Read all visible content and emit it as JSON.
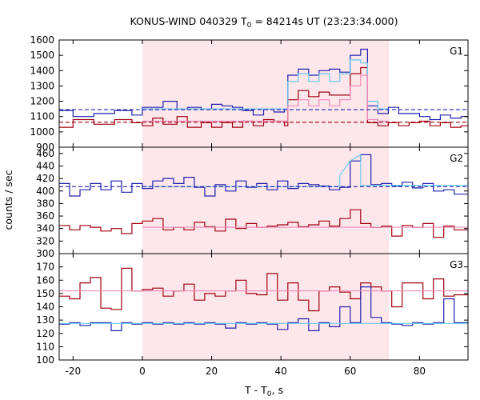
{
  "chart_data": {
    "type": "line",
    "title": "KONUS-WIND 040329 T",
    "title_sub": "0",
    "title_rest": " = 84214s UT (23:23:34.000)",
    "xlabel": "T - T",
    "xlabel_sub": "0",
    "xlabel_rest": ", s",
    "ylabel": "counts / sec",
    "xlim": [
      -24,
      94
    ],
    "x_ticks": [
      -20,
      0,
      20,
      40,
      60,
      80
    ],
    "x_tick_labels": [
      "-20",
      "0",
      "20",
      "40",
      "60",
      "80"
    ],
    "highlight_interval": [
      0,
      71.2
    ],
    "colors": {
      "highlight": "#fde7ea",
      "red_hist": "#a00010",
      "blue_hist": "#2020b0",
      "light_blue": "#66c8ee",
      "pink": "#f08ab8"
    },
    "panels": [
      {
        "name": "G1",
        "ylim": [
          900,
          1600
        ],
        "y_ticks": [
          900,
          1000,
          1100,
          1200,
          1300,
          1400,
          1500,
          1600
        ],
        "y_tick_labels": [
          "900",
          "1000",
          "1100",
          "1200",
          "1300",
          "1400",
          "1500",
          "1600"
        ],
        "bin_edges": [
          -24,
          -20,
          -14,
          -8,
          -3,
          0,
          3,
          6,
          10,
          13,
          17,
          20,
          23,
          26,
          29,
          32,
          35,
          38,
          41,
          42,
          45,
          48,
          51,
          54,
          57,
          60,
          63,
          65,
          68,
          71,
          74,
          77,
          80,
          83,
          86,
          89,
          92,
          94
        ],
        "series": [
          {
            "color": "blue_hist",
            "style": "hist",
            "values": [
              1140,
              1100,
              1120,
              1140,
              1110,
              1160,
              1160,
              1200,
              1150,
              1160,
              1150,
              1180,
              1170,
              1160,
              1140,
              1110,
              1150,
              1130,
              1150,
              1370,
              1410,
              1370,
              1400,
              1410,
              1390,
              1500,
              1540,
              1170,
              1120,
              1160,
              1120,
              1120,
              1100,
              1080,
              1110,
              1090,
              1100
            ]
          },
          {
            "color": "red_hist",
            "style": "hist",
            "values": [
              1030,
              1080,
              1050,
              1080,
              1060,
              1040,
              1090,
              1050,
              1100,
              1030,
              1060,
              1030,
              1060,
              1030,
              1070,
              1040,
              1080,
              1070,
              1040,
              1210,
              1270,
              1230,
              1260,
              1240,
              1240,
              1380,
              1420,
              1060,
              1040,
              1060,
              1040,
              1060,
              1070,
              1040,
              1060,
              1030,
              1040
            ]
          },
          {
            "color": "light_blue",
            "style": "hist",
            "values": [
              null,
              null,
              null,
              null,
              null,
              1150,
              1150,
              1150,
              1150,
              1150,
              1150,
              1150,
              1150,
              1150,
              1150,
              1150,
              1150,
              1150,
              1150,
              1330,
              1380,
              1330,
              1380,
              1330,
              1380,
              1470,
              1450,
              1200,
              1150,
              null,
              null,
              null,
              null,
              null,
              null,
              null,
              null
            ]
          },
          {
            "color": "pink",
            "style": "hist",
            "values": [
              null,
              null,
              null,
              null,
              null,
              1070,
              1070,
              1070,
              1070,
              1070,
              1070,
              1070,
              1070,
              1070,
              1070,
              1070,
              1070,
              1070,
              1070,
              1170,
              1210,
              1170,
              1210,
              1170,
              1210,
              1300,
              1370,
              1080,
              1070,
              null,
              null,
              null,
              null,
              null,
              null,
              null,
              null
            ]
          }
        ],
        "baselines": [
          {
            "color": "blue_hist",
            "value": 1145,
            "style": "dashed"
          },
          {
            "color": "red_hist",
            "value": 1063,
            "style": "dashed"
          }
        ]
      },
      {
        "name": "G2",
        "ylim": [
          300,
          470
        ],
        "y_ticks": [
          300,
          320,
          340,
          360,
          380,
          400,
          420,
          440,
          460
        ],
        "y_tick_labels": [
          "300",
          "320",
          "340",
          "360",
          "380",
          "400",
          "420",
          "440",
          "460"
        ],
        "bin_edges": [
          -24,
          -21,
          -18,
          -15,
          -12,
          -9,
          -6,
          -3,
          0,
          3,
          6,
          9,
          12,
          15,
          18,
          21,
          24,
          27,
          30,
          33,
          36,
          39,
          42,
          45,
          48,
          51,
          54,
          57,
          60,
          63,
          66,
          69,
          72,
          75,
          78,
          81,
          84,
          87,
          90,
          94
        ],
        "series": [
          {
            "color": "blue_hist",
            "style": "hist",
            "values": [
              412,
              392,
              402,
              412,
              402,
              416,
              398,
              412,
              404,
              416,
              420,
              412,
              422,
              406,
              392,
              410,
              400,
              416,
              406,
              412,
              402,
              416,
              404,
              412,
              410,
              408,
              402,
              406,
              448,
              458,
              410,
              412,
              408,
              414,
              405,
              412,
              400,
              402,
              395
            ]
          },
          {
            "color": "red_hist",
            "style": "hist",
            "values": [
              345,
              338,
              345,
              342,
              336,
              340,
              332,
              348,
              352,
              356,
              338,
              342,
              338,
              350,
              343,
              336,
              355,
              340,
              348,
              342,
              344,
              346,
              350,
              343,
              346,
              352,
              344,
              356,
              370,
              348,
              342,
              344,
              328,
              345,
              342,
              348,
              326,
              344,
              338
            ]
          }
        ],
        "lines": [
          {
            "color": "light_blue",
            "points": [
              [
                0,
                407
              ],
              [
                57,
                407
              ],
              [
                57,
                425
              ],
              [
                60,
                448
              ],
              [
                63,
                458
              ],
              [
                63,
                409
              ],
              [
                94,
                409
              ]
            ]
          },
          {
            "color": "pink",
            "points": [
              [
                0,
                342
              ],
              [
                94,
                342
              ]
            ]
          }
        ],
        "baselines": [
          {
            "color": "blue_hist",
            "value": 407,
            "style": "dashed"
          }
        ]
      },
      {
        "name": "G3",
        "ylim": [
          100,
          180
        ],
        "y_ticks": [
          100,
          110,
          120,
          130,
          140,
          150,
          160,
          170
        ],
        "y_tick_labels": [
          "100",
          "110",
          "120",
          "130",
          "140",
          "150",
          "160",
          "170"
        ],
        "bin_edges": [
          -24,
          -21,
          -18,
          -15,
          -12,
          -9,
          -6,
          -3,
          0,
          3,
          6,
          9,
          12,
          15,
          18,
          21,
          24,
          27,
          30,
          33,
          36,
          39,
          42,
          45,
          48,
          51,
          54,
          57,
          60,
          63,
          66,
          69,
          72,
          75,
          78,
          81,
          84,
          87,
          90,
          94
        ],
        "series": [
          {
            "color": "red_hist",
            "style": "hist",
            "values": [
              148,
              146,
              158,
              162,
              139,
              138,
              169,
              152,
              153,
              154,
              148,
              152,
              157,
              145,
              150,
              148,
              152,
              160,
              150,
              149,
              165,
              145,
              158,
              145,
              137,
              152,
              155,
              151,
              146,
              158,
              155,
              152,
              140,
              158,
              158,
              146,
              161,
              148,
              149
            ]
          },
          {
            "color": "blue_hist",
            "style": "hist",
            "values": [
              127,
              128,
              126,
              128,
              128,
              122,
              128,
              127,
              128,
              127,
              128,
              127,
              128,
              127,
              128,
              127,
              124,
              128,
              127,
              128,
              127,
              123,
              128,
              131,
              122,
              128,
              125,
              140,
              128,
              155,
              132,
              128,
              127,
              126,
              128,
              127,
              128,
              146,
              128
            ]
          }
        ],
        "lines": [
          {
            "color": "pink",
            "points": [
              [
                -24,
                152
              ],
              [
                94,
                152
              ]
            ]
          },
          {
            "color": "light_blue",
            "points": [
              [
                -24,
                127.5
              ],
              [
                94,
                127.5
              ]
            ]
          }
        ]
      }
    ]
  }
}
